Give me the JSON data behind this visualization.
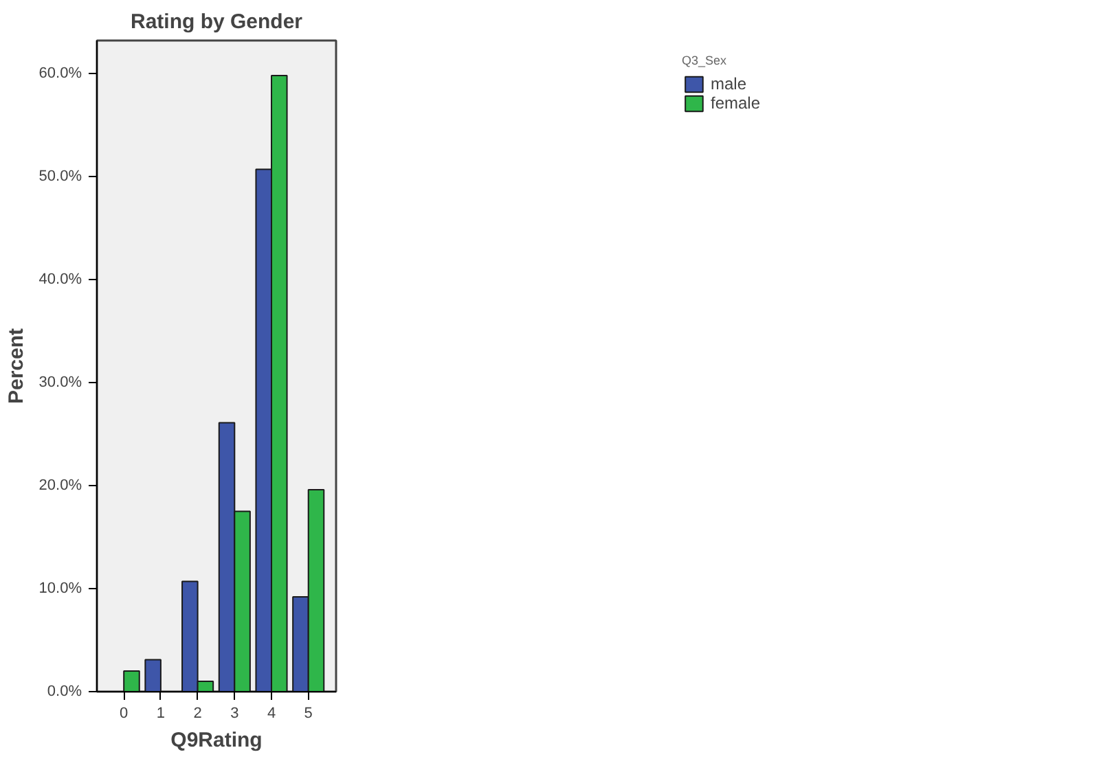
{
  "chart_data": {
    "type": "bar",
    "title": "Rating by Gender",
    "xlabel": "Q9Rating",
    "ylabel": "Percent",
    "legend_title": "Q3_Sex",
    "categories": [
      "0",
      "1",
      "2",
      "3",
      "4",
      "5"
    ],
    "series": [
      {
        "name": "male",
        "color": "#3e56a9",
        "values": [
          null,
          3.1,
          10.7,
          26.1,
          50.7,
          9.2
        ]
      },
      {
        "name": "female",
        "color": "#2fb64a",
        "values": [
          2.0,
          null,
          1.0,
          17.5,
          59.8,
          19.6
        ]
      }
    ],
    "ylim": [
      0,
      63.2
    ],
    "yticks": [
      {
        "value": 0,
        "label": "0.0%"
      },
      {
        "value": 10,
        "label": "10.0%"
      },
      {
        "value": 20,
        "label": "20.0%"
      },
      {
        "value": 30,
        "label": "30.0%"
      },
      {
        "value": 40,
        "label": "40.0%"
      },
      {
        "value": 50,
        "label": "50.0%"
      },
      {
        "value": 60,
        "label": "60.0%"
      }
    ],
    "grid": false,
    "legend": "top right"
  }
}
